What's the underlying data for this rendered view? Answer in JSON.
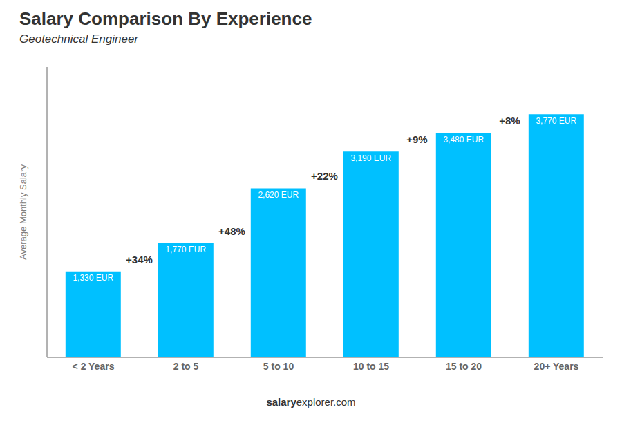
{
  "chart_data": {
    "type": "bar",
    "title": "Salary Comparison By Experience",
    "subtitle": "Geotechnical Engineer",
    "ylabel": "Average Monthly Salary",
    "footer": [
      "salary",
      "explorer.com"
    ],
    "categories": [
      "< 2 Years",
      "2 to 5",
      "5 to 10",
      "10 to 15",
      "15 to 20",
      "20+ Years"
    ],
    "values": [
      1330,
      1770,
      2620,
      3190,
      3480,
      3770
    ],
    "value_labels": [
      "1,330 EUR",
      "1,770 EUR",
      "2,620 EUR",
      "3,190 EUR",
      "3,480 EUR",
      "3,770 EUR"
    ],
    "data_labels": true,
    "annotations": [
      "+34%",
      "+48%",
      "+22%",
      "+9%",
      "+8%"
    ],
    "color": "#00C0FF",
    "ylim": [
      0,
      4500
    ],
    "tick_labels": "x",
    "grid": false
  }
}
